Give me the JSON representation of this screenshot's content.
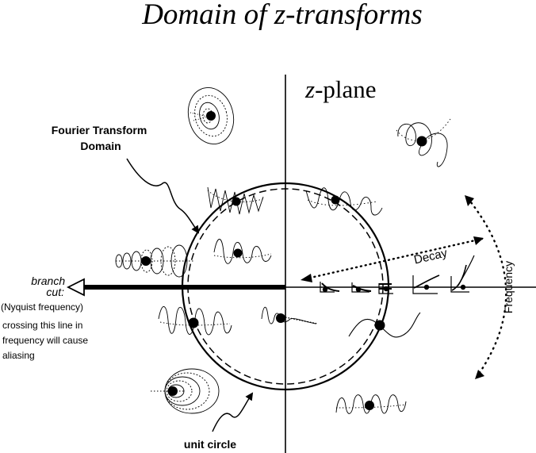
{
  "title": "Domain of z-transforms",
  "plane_label": {
    "italic": "z",
    "rest": "-plane"
  },
  "fourier_label": {
    "line1": "Fourier Transform",
    "line2": "Domain"
  },
  "branch_label": {
    "line1": "branch",
    "line2": "cut:"
  },
  "branch_note": [
    "(Nyquist frequency)",
    "crossing this line in",
    "frequency will cause",
    "aliasing"
  ],
  "decay_label": "Decay",
  "frequency_label": "Frequency",
  "unit_circle_label": "unit circle"
}
